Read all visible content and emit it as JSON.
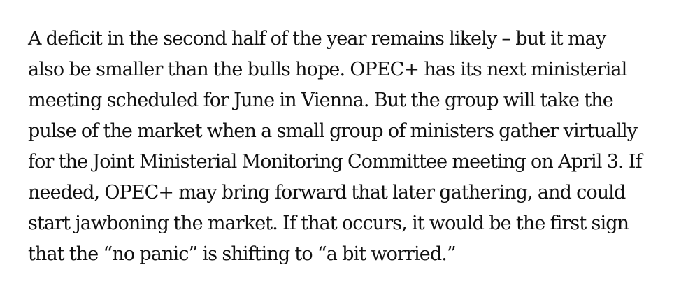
{
  "article": {
    "paragraph_lines": [
      "A deficit in the second half of the year remains likely – but it may",
      "also be smaller than the bulls hope. OPEC+ has its next ministerial",
      "meeting scheduled for June in Vienna. But the group will take the",
      "pulse of the market when a small group of ministers gather virtually",
      "for the Joint Ministerial Monitoring Committee meeting on April 3. If",
      "needed, OPEC+ may bring forward that later gathering, and could",
      "start jawboning the market. If that occurs, it would be the first sign",
      "that the “no panic” is shifting to “a bit worried.”"
    ]
  }
}
